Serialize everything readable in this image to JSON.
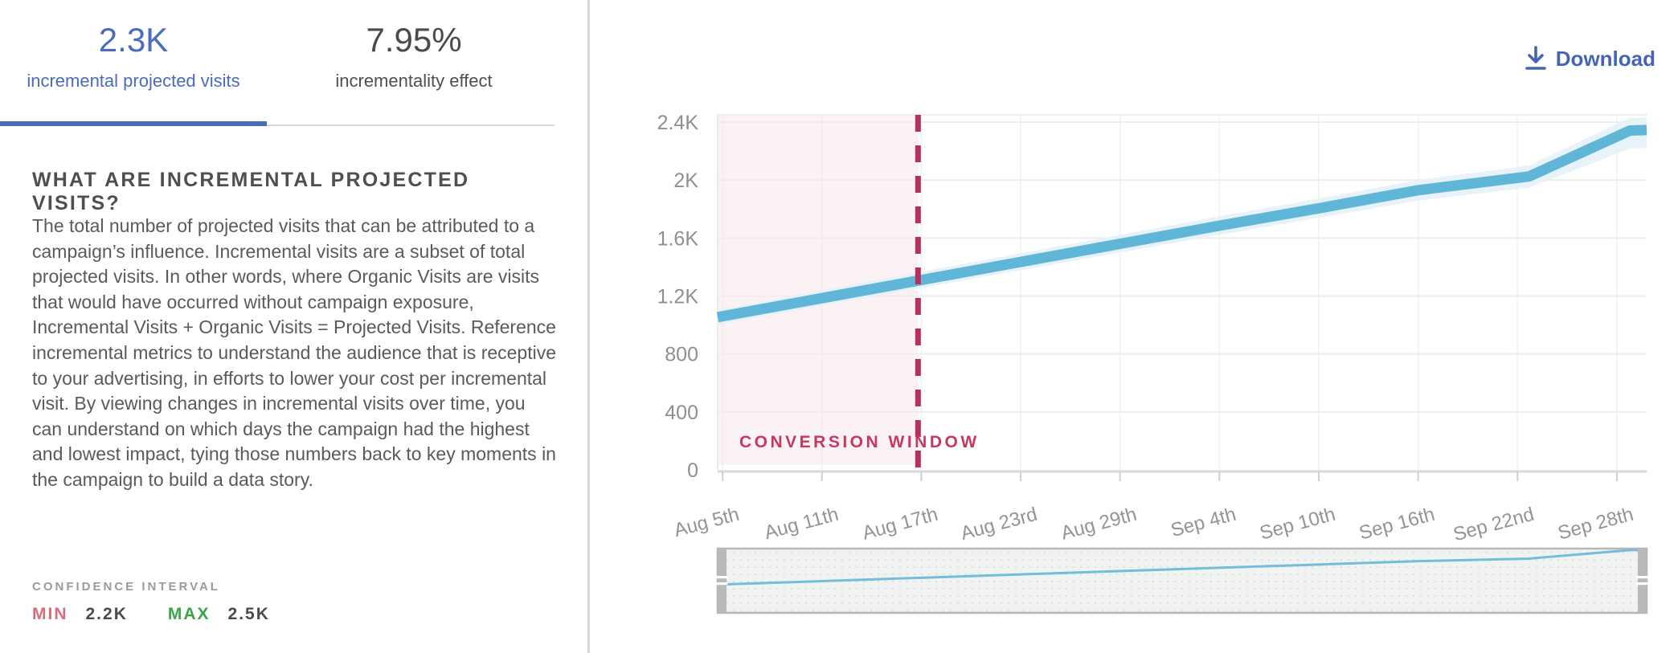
{
  "tabs": [
    {
      "value": "2.3K",
      "label": "incremental projected visits",
      "active": true
    },
    {
      "value": "7.95%",
      "label": "incrementality effect",
      "active": false
    }
  ],
  "info": {
    "heading": "WHAT ARE INCREMENTAL PROJECTED VISITS?",
    "paragraph": "The total number of projected visits that can be attributed to a campaign’s influence. Incremental visits are a subset of total projected visits. In other words, where Organic Visits are visits that would have occurred without campaign exposure, Incremental Visits + Organic Visits = Projected Visits. Reference incremental metrics to understand the audience that is receptive to your advertising, in efforts to lower your cost per incremental visit. By viewing changes in incremental visits over time, you can understand on which days the campaign had the highest and lowest impact, tying those numbers back to key moments in the campaign to build a data story."
  },
  "confidence_interval": {
    "label": "CONFIDENCE INTERVAL",
    "min_label": "MIN",
    "min_value": "2.2K",
    "max_label": "MAX",
    "max_value": "2.5K"
  },
  "toolbar": {
    "download_label": "Download"
  },
  "colors": {
    "accent_blue": "#4a6cba",
    "download_blue": "#4565b4",
    "line_blue": "#5fb6d6",
    "band_blue": "#e4f2f8",
    "window_pink": "#f7e7ee",
    "window_line": "#b23259",
    "window_text": "#c73860",
    "min_red": "#d76c7c",
    "max_green": "#3fa347",
    "axis_text": "#949494",
    "grid_line": "#ededed"
  },
  "chart_data": {
    "type": "line",
    "title": "",
    "xlabel": "",
    "ylabel": "",
    "unit": "visits",
    "x_axis": {
      "tick_labels": [
        "Aug 5th",
        "Aug 11th",
        "Aug 17th",
        "Aug 23rd",
        "Aug 29th",
        "Sep 4th",
        "Sep 10th",
        "Sep 16th",
        "Sep 22nd",
        "Sep 28th"
      ],
      "tick_days": [
        0,
        6,
        12,
        18,
        24,
        30,
        36,
        42,
        48,
        54
      ]
    },
    "y_axis": {
      "range": [
        0,
        2400
      ],
      "ticks": [
        {
          "v": 0,
          "label": "0"
        },
        {
          "v": 400,
          "label": "400"
        },
        {
          "v": 800,
          "label": "800"
        },
        {
          "v": 1200,
          "label": "1.2K"
        },
        {
          "v": 1600,
          "label": "1.6K"
        },
        {
          "v": 2000,
          "label": "2K"
        },
        {
          "v": 2400,
          "label": "2.4K"
        }
      ]
    },
    "x_range_days": [
      -0.3,
      55.8
    ],
    "grid": true,
    "legend": false,
    "navigator": true,
    "series": [
      {
        "name": "incremental projected visits",
        "color": "#5fb6d6",
        "points": [
          [
            -0.3,
            1054
          ],
          [
            0,
            1060
          ],
          [
            6,
            1185
          ],
          [
            12,
            1310
          ],
          [
            18,
            1435
          ],
          [
            24,
            1560
          ],
          [
            30,
            1685
          ],
          [
            36,
            1805
          ],
          [
            42,
            1930
          ],
          [
            48.7,
            2025
          ],
          [
            54.8,
            2342
          ],
          [
            55.8,
            2345
          ]
        ]
      }
    ],
    "confidence_band": {
      "color": "#e4f2f8",
      "upper": [
        [
          -0.3,
          1104
        ],
        [
          0,
          1110
        ],
        [
          6,
          1240
        ],
        [
          12,
          1368
        ],
        [
          18,
          1495
        ],
        [
          24,
          1622
        ],
        [
          30,
          1750
        ],
        [
          36,
          1872
        ],
        [
          42,
          2000
        ],
        [
          48.7,
          2100
        ],
        [
          54.8,
          2430
        ],
        [
          55.8,
          2432
        ]
      ],
      "lower": [
        [
          -0.3,
          1002
        ],
        [
          0,
          1008
        ],
        [
          6,
          1132
        ],
        [
          12,
          1255
        ],
        [
          18,
          1378
        ],
        [
          24,
          1500
        ],
        [
          30,
          1622
        ],
        [
          36,
          1740
        ],
        [
          42,
          1858
        ],
        [
          48.7,
          1948
        ],
        [
          54.8,
          2218
        ],
        [
          55.8,
          2222
        ]
      ]
    },
    "conversion_window": {
      "label": "CONVERSION WINDOW",
      "start_day": -0.3,
      "end_day": 11.8,
      "fill": "#f7e7ee",
      "fill_opacity": 0.55,
      "line_color": "#b23259",
      "label_color": "#c73860"
    }
  }
}
